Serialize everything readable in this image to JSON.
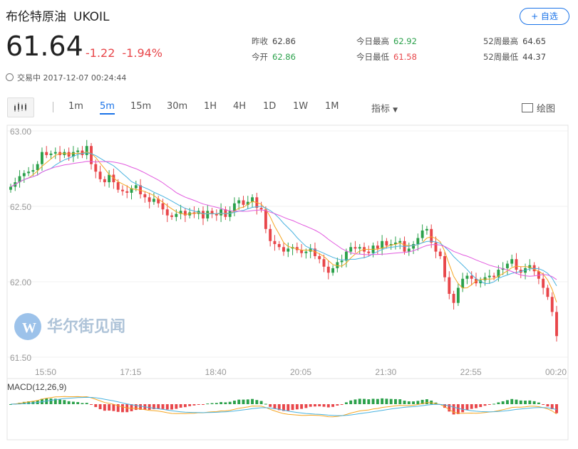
{
  "header": {
    "name": "布伦特原油",
    "symbol": "UKOIL",
    "follow_label": "+ 自选",
    "price": "61.64",
    "change": "-1.22",
    "change_pct": "-1.94%",
    "status": "交易中 2017-12-07 00:24:44"
  },
  "stats": [
    {
      "label": "昨收",
      "value": "62.86",
      "tone": "neu"
    },
    {
      "label": "今开",
      "value": "62.86",
      "tone": "down"
    },
    {
      "label": "今日最高",
      "value": "62.92",
      "tone": "down"
    },
    {
      "label": "今日最低",
      "value": "61.58",
      "tone": "up"
    },
    {
      "label": "52周最高",
      "value": "64.65",
      "tone": "neu"
    },
    {
      "label": "52周最低",
      "value": "44.37",
      "tone": "neu"
    }
  ],
  "toolbar": {
    "timeframes": [
      "1m",
      "5m",
      "15m",
      "30m",
      "1H",
      "4H",
      "1D",
      "1W",
      "1M"
    ],
    "active": "5m",
    "indicator_label": "指标",
    "draw_label": "绘图",
    "chart_type_icon": "candlestick-icon"
  },
  "watermark": "华尔街见闻",
  "colors": {
    "up": "#e8464a",
    "down": "#2ba14b",
    "accent": "#1a73e8",
    "ma5": "#f5a623",
    "ma10": "#4ab3e0",
    "ma20": "#e25adf"
  },
  "chart_data": {
    "type": "candlestick",
    "y_ticks": [
      "63.00",
      "62.50",
      "62.00",
      "61.50"
    ],
    "ylim": [
      61.5,
      63.0
    ],
    "x_ticks": [
      "15:50",
      "17:15",
      "18:40",
      "20:05",
      "21:30",
      "22:55",
      "00:20"
    ],
    "macd_label": "MACD(12,26,9)",
    "close": [
      62.63,
      62.66,
      62.7,
      62.72,
      62.73,
      62.74,
      62.78,
      62.86,
      62.84,
      62.85,
      62.86,
      62.84,
      62.86,
      62.83,
      62.86,
      62.87,
      62.84,
      62.9,
      62.78,
      62.73,
      62.68,
      62.66,
      62.71,
      62.66,
      62.61,
      62.6,
      62.59,
      62.62,
      62.64,
      62.58,
      62.56,
      62.53,
      62.55,
      62.52,
      62.48,
      62.44,
      62.43,
      62.45,
      62.47,
      62.44,
      62.46,
      62.45,
      62.47,
      62.42,
      62.47,
      62.45,
      62.44,
      62.48,
      62.43,
      62.47,
      62.52,
      62.54,
      62.51,
      62.53,
      62.56,
      62.49,
      62.48,
      62.35,
      62.27,
      62.25,
      62.23,
      62.2,
      62.22,
      62.23,
      62.21,
      62.19,
      62.2,
      62.22,
      62.17,
      62.15,
      62.1,
      62.06,
      62.09,
      62.13,
      62.14,
      62.2,
      62.23,
      62.22,
      62.23,
      62.2,
      62.19,
      62.24,
      62.22,
      62.27,
      62.24,
      62.25,
      62.26,
      62.27,
      62.2,
      62.22,
      62.25,
      62.29,
      62.34,
      62.35,
      62.26,
      62.2,
      62.17,
      62.03,
      61.92,
      61.86,
      61.96,
      62.02,
      62.04,
      62.02,
      61.99,
      62.01,
      62.03,
      62.04,
      62.03,
      62.08,
      62.09,
      62.12,
      62.15,
      62.08,
      62.06,
      62.09,
      62.11,
      62.07,
      62.02,
      61.96,
      61.9,
      61.8,
      61.64
    ],
    "open": [
      62.61,
      62.63,
      62.66,
      62.7,
      62.72,
      62.73,
      62.74,
      62.78,
      62.86,
      62.84,
      62.85,
      62.86,
      62.84,
      62.86,
      62.83,
      62.86,
      62.87,
      62.84,
      62.9,
      62.78,
      62.73,
      62.68,
      62.66,
      62.71,
      62.66,
      62.61,
      62.6,
      62.59,
      62.62,
      62.64,
      62.58,
      62.56,
      62.53,
      62.55,
      62.52,
      62.48,
      62.44,
      62.43,
      62.45,
      62.47,
      62.44,
      62.46,
      62.45,
      62.47,
      62.42,
      62.47,
      62.45,
      62.44,
      62.48,
      62.43,
      62.47,
      62.52,
      62.54,
      62.51,
      62.53,
      62.56,
      62.49,
      62.48,
      62.35,
      62.27,
      62.25,
      62.23,
      62.2,
      62.22,
      62.23,
      62.21,
      62.19,
      62.2,
      62.22,
      62.17,
      62.15,
      62.1,
      62.06,
      62.09,
      62.13,
      62.14,
      62.2,
      62.23,
      62.22,
      62.23,
      62.2,
      62.19,
      62.24,
      62.22,
      62.27,
      62.24,
      62.25,
      62.26,
      62.27,
      62.2,
      62.22,
      62.25,
      62.29,
      62.34,
      62.35,
      62.26,
      62.2,
      62.17,
      62.03,
      61.92,
      61.86,
      61.96,
      62.02,
      62.04,
      62.02,
      61.99,
      62.01,
      62.03,
      62.04,
      62.03,
      62.08,
      62.09,
      62.12,
      62.15,
      62.08,
      62.06,
      62.09,
      62.11,
      62.07,
      62.02,
      61.96,
      61.9,
      61.8
    ]
  }
}
